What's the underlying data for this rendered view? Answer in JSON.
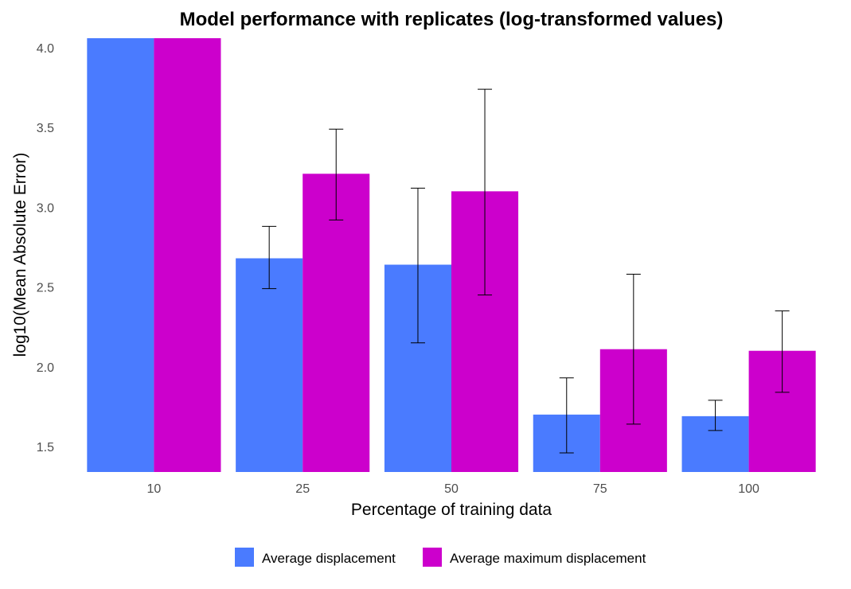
{
  "chart_data": {
    "type": "bar",
    "title": "Model performance with replicates (log-transformed values)",
    "xlabel": "Percentage of training data",
    "ylabel": "log10(Mean Absolute Error)",
    "categories": [
      "10",
      "25",
      "50",
      "75",
      "100"
    ],
    "ylim": [
      1.34,
      4.06
    ],
    "yticks": [
      1.5,
      2.0,
      2.5,
      3.0,
      3.5,
      4.0
    ],
    "ytick_labels": [
      "1.5",
      "2.0",
      "2.5",
      "3.0",
      "3.5",
      "4.0"
    ],
    "grid": false,
    "legend_position": "bottom",
    "series": [
      {
        "name": "Average displacement",
        "color": "#4a7bff",
        "values": [
          4.06,
          2.68,
          2.64,
          1.7,
          1.69
        ],
        "error_low": [
          null,
          2.49,
          2.15,
          1.46,
          1.6
        ],
        "error_high": [
          null,
          2.88,
          3.12,
          1.93,
          1.79
        ]
      },
      {
        "name": "Average maximum displacement",
        "color": "#cc00cc",
        "values": [
          4.06,
          3.21,
          3.1,
          2.11,
          2.1
        ],
        "error_low": [
          null,
          2.92,
          2.45,
          1.64,
          1.84
        ],
        "error_high": [
          null,
          3.49,
          3.74,
          2.58,
          2.35
        ]
      }
    ]
  }
}
